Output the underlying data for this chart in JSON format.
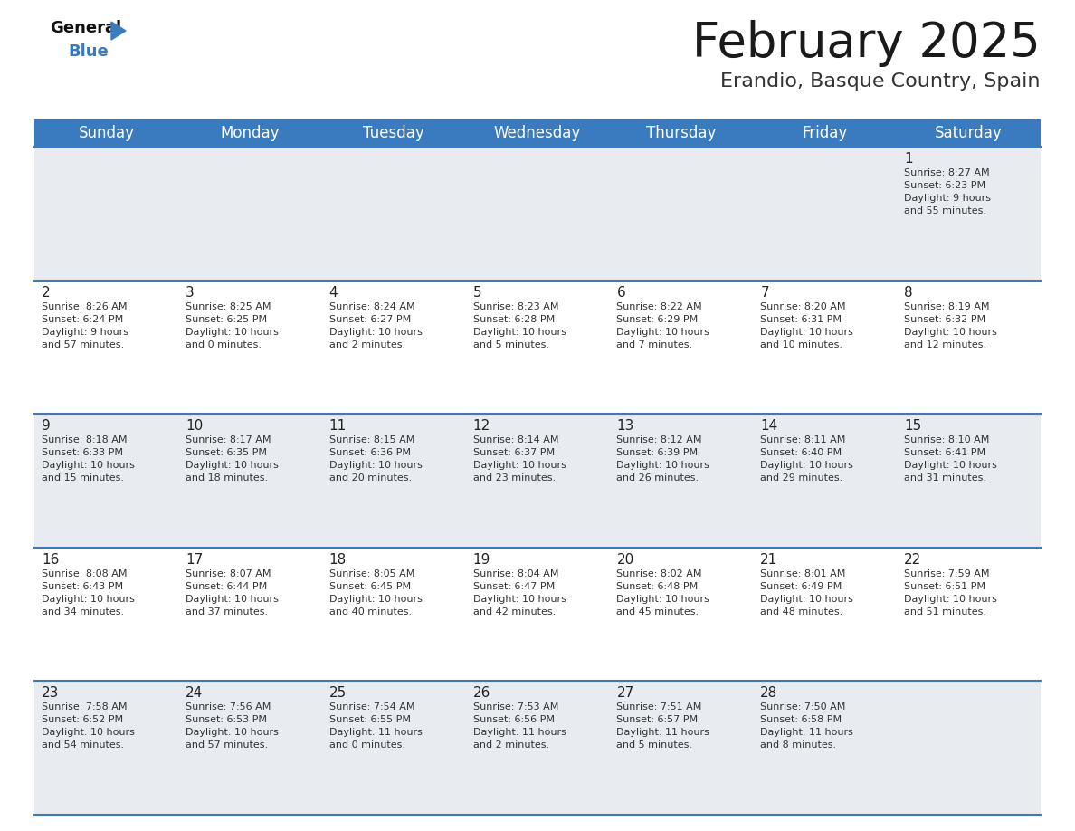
{
  "title": "February 2025",
  "subtitle": "Erandio, Basque Country, Spain",
  "header_color": "#3a7bbf",
  "header_text_color": "#ffffff",
  "row_bg": [
    "#e8ecf0",
    "#ffffff",
    "#e8ecf0",
    "#ffffff",
    "#e8ecf0"
  ],
  "separator_color": "#3a7bbf",
  "text_color": "#333333",
  "day_num_color": "#222222",
  "day_names": [
    "Sunday",
    "Monday",
    "Tuesday",
    "Wednesday",
    "Thursday",
    "Friday",
    "Saturday"
  ],
  "days_data": [
    {
      "day": 1,
      "col": 6,
      "row": 0,
      "sunrise": "8:27 AM",
      "sunset": "6:23 PM",
      "daylight": "9 hours and 55 minutes."
    },
    {
      "day": 2,
      "col": 0,
      "row": 1,
      "sunrise": "8:26 AM",
      "sunset": "6:24 PM",
      "daylight": "9 hours and 57 minutes."
    },
    {
      "day": 3,
      "col": 1,
      "row": 1,
      "sunrise": "8:25 AM",
      "sunset": "6:25 PM",
      "daylight": "10 hours and 0 minutes."
    },
    {
      "day": 4,
      "col": 2,
      "row": 1,
      "sunrise": "8:24 AM",
      "sunset": "6:27 PM",
      "daylight": "10 hours and 2 minutes."
    },
    {
      "day": 5,
      "col": 3,
      "row": 1,
      "sunrise": "8:23 AM",
      "sunset": "6:28 PM",
      "daylight": "10 hours and 5 minutes."
    },
    {
      "day": 6,
      "col": 4,
      "row": 1,
      "sunrise": "8:22 AM",
      "sunset": "6:29 PM",
      "daylight": "10 hours and 7 minutes."
    },
    {
      "day": 7,
      "col": 5,
      "row": 1,
      "sunrise": "8:20 AM",
      "sunset": "6:31 PM",
      "daylight": "10 hours and 10 minutes."
    },
    {
      "day": 8,
      "col": 6,
      "row": 1,
      "sunrise": "8:19 AM",
      "sunset": "6:32 PM",
      "daylight": "10 hours and 12 minutes."
    },
    {
      "day": 9,
      "col": 0,
      "row": 2,
      "sunrise": "8:18 AM",
      "sunset": "6:33 PM",
      "daylight": "10 hours and 15 minutes."
    },
    {
      "day": 10,
      "col": 1,
      "row": 2,
      "sunrise": "8:17 AM",
      "sunset": "6:35 PM",
      "daylight": "10 hours and 18 minutes."
    },
    {
      "day": 11,
      "col": 2,
      "row": 2,
      "sunrise": "8:15 AM",
      "sunset": "6:36 PM",
      "daylight": "10 hours and 20 minutes."
    },
    {
      "day": 12,
      "col": 3,
      "row": 2,
      "sunrise": "8:14 AM",
      "sunset": "6:37 PM",
      "daylight": "10 hours and 23 minutes."
    },
    {
      "day": 13,
      "col": 4,
      "row": 2,
      "sunrise": "8:12 AM",
      "sunset": "6:39 PM",
      "daylight": "10 hours and 26 minutes."
    },
    {
      "day": 14,
      "col": 5,
      "row": 2,
      "sunrise": "8:11 AM",
      "sunset": "6:40 PM",
      "daylight": "10 hours and 29 minutes."
    },
    {
      "day": 15,
      "col": 6,
      "row": 2,
      "sunrise": "8:10 AM",
      "sunset": "6:41 PM",
      "daylight": "10 hours and 31 minutes."
    },
    {
      "day": 16,
      "col": 0,
      "row": 3,
      "sunrise": "8:08 AM",
      "sunset": "6:43 PM",
      "daylight": "10 hours and 34 minutes."
    },
    {
      "day": 17,
      "col": 1,
      "row": 3,
      "sunrise": "8:07 AM",
      "sunset": "6:44 PM",
      "daylight": "10 hours and 37 minutes."
    },
    {
      "day": 18,
      "col": 2,
      "row": 3,
      "sunrise": "8:05 AM",
      "sunset": "6:45 PM",
      "daylight": "10 hours and 40 minutes."
    },
    {
      "day": 19,
      "col": 3,
      "row": 3,
      "sunrise": "8:04 AM",
      "sunset": "6:47 PM",
      "daylight": "10 hours and 42 minutes."
    },
    {
      "day": 20,
      "col": 4,
      "row": 3,
      "sunrise": "8:02 AM",
      "sunset": "6:48 PM",
      "daylight": "10 hours and 45 minutes."
    },
    {
      "day": 21,
      "col": 5,
      "row": 3,
      "sunrise": "8:01 AM",
      "sunset": "6:49 PM",
      "daylight": "10 hours and 48 minutes."
    },
    {
      "day": 22,
      "col": 6,
      "row": 3,
      "sunrise": "7:59 AM",
      "sunset": "6:51 PM",
      "daylight": "10 hours and 51 minutes."
    },
    {
      "day": 23,
      "col": 0,
      "row": 4,
      "sunrise": "7:58 AM",
      "sunset": "6:52 PM",
      "daylight": "10 hours and 54 minutes."
    },
    {
      "day": 24,
      "col": 1,
      "row": 4,
      "sunrise": "7:56 AM",
      "sunset": "6:53 PM",
      "daylight": "10 hours and 57 minutes."
    },
    {
      "day": 25,
      "col": 2,
      "row": 4,
      "sunrise": "7:54 AM",
      "sunset": "6:55 PM",
      "daylight": "11 hours and 0 minutes."
    },
    {
      "day": 26,
      "col": 3,
      "row": 4,
      "sunrise": "7:53 AM",
      "sunset": "6:56 PM",
      "daylight": "11 hours and 2 minutes."
    },
    {
      "day": 27,
      "col": 4,
      "row": 4,
      "sunrise": "7:51 AM",
      "sunset": "6:57 PM",
      "daylight": "11 hours and 5 minutes."
    },
    {
      "day": 28,
      "col": 5,
      "row": 4,
      "sunrise": "7:50 AM",
      "sunset": "6:58 PM",
      "daylight": "11 hours and 8 minutes."
    }
  ],
  "num_rows": 5,
  "num_cols": 7,
  "title_fontsize": 38,
  "subtitle_fontsize": 16,
  "header_fontsize": 12,
  "day_num_fontsize": 11,
  "cell_text_fontsize": 8
}
